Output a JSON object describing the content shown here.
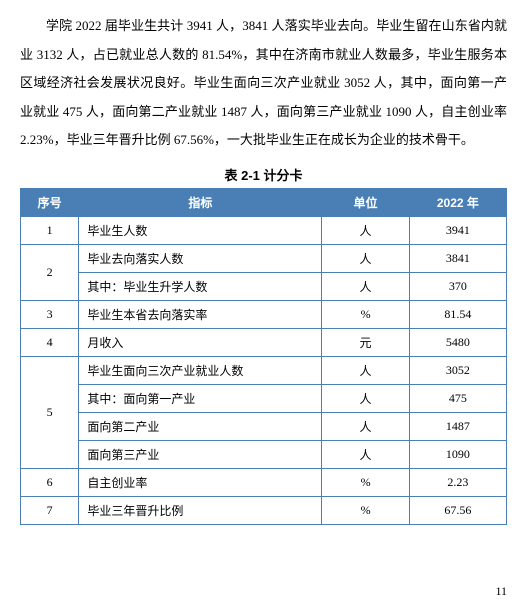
{
  "paragraph": "学院 2022 届毕业生共计 3941 人，3841 人落实毕业去向。毕业生留在山东省内就业 3132 人，占已就业总人数的 81.54%，其中在济南市就业人数最多，毕业生服务本区域经济社会发展状况良好。毕业生面向三次产业就业 3052 人，其中，面向第一产业就业 475 人，面向第二产业就业 1487 人，面向第三产业就业 1090 人，自主创业率 2.23%，毕业三年晋升比例 67.56%，一大批毕业生正在成长为企业的技术骨干。",
  "table": {
    "caption": "表 2-1 计分卡",
    "headers": {
      "seq": "序号",
      "indicator": "指标",
      "unit": "单位",
      "value": "2022 年"
    },
    "rows": [
      {
        "seq": "1",
        "indicator": "毕业生人数",
        "unit": "人",
        "value": "3941",
        "indent": false
      },
      {
        "seq": "2",
        "indicator": "毕业去向落实人数",
        "unit": "人",
        "value": "3841",
        "indent": false,
        "rowspan": 2
      },
      {
        "seq": "",
        "indicator": "其中：毕业生升学人数",
        "unit": "人",
        "value": "370",
        "indent": false
      },
      {
        "seq": "3",
        "indicator": "毕业生本省去向落实率",
        "unit": "%",
        "value": "81.54",
        "indent": false
      },
      {
        "seq": "4",
        "indicator": "月收入",
        "unit": "元",
        "value": "5480",
        "indent": false
      },
      {
        "seq": "5",
        "indicator": "毕业生面向三次产业就业人数",
        "unit": "人",
        "value": "3052",
        "indent": false,
        "rowspan": 4
      },
      {
        "seq": "",
        "indicator": "其中：面向第一产业",
        "unit": "人",
        "value": "475",
        "indent": false
      },
      {
        "seq": "",
        "indicator": "面向第二产业",
        "unit": "人",
        "value": "1487",
        "indent": false
      },
      {
        "seq": "",
        "indicator": "面向第三产业",
        "unit": "人",
        "value": "1090",
        "indent": false
      },
      {
        "seq": "6",
        "indicator": "自主创业率",
        "unit": "%",
        "value": "2.23",
        "indent": false
      },
      {
        "seq": "7",
        "indicator": "毕业三年晋升比例",
        "unit": "%",
        "value": "67.56",
        "indent": false
      }
    ],
    "styling": {
      "header_bg": "#4a7fb5",
      "header_color": "#ffffff",
      "border_color": "#4a7fb5",
      "col_widths": {
        "seq": "12%",
        "indicator": "50%",
        "unit": "18%",
        "value": "20%"
      }
    }
  },
  "page_number": "11"
}
